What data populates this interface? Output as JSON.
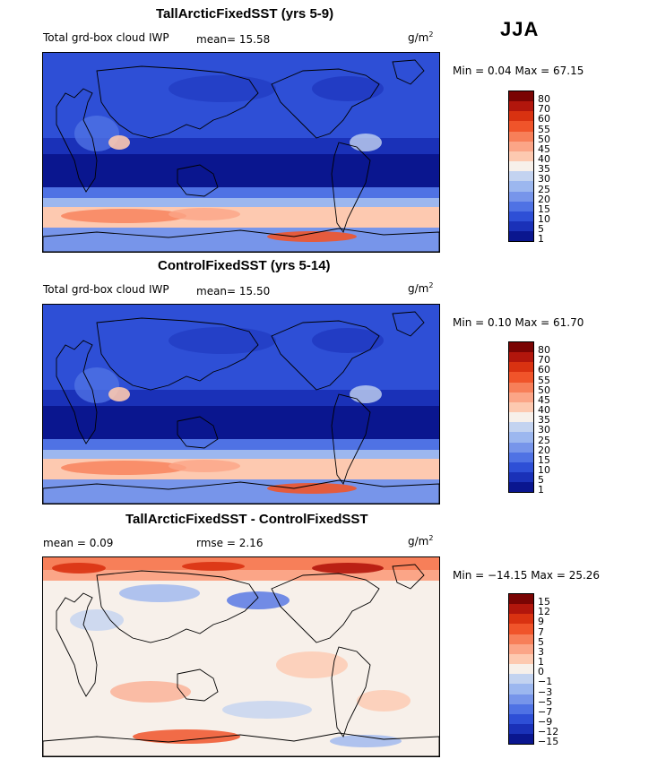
{
  "season": "JJA",
  "units_base": "g/m",
  "units_exp": "2",
  "panels": [
    {
      "title": "TallArcticFixedSST (yrs 5-9)",
      "subtitle": "Total grd-box cloud IWP",
      "mean_text": "mean=  15.58",
      "minmax_text": "Min =   0.04 Max =  67.15"
    },
    {
      "title": "ControlFixedSST (yrs 5-14)",
      "subtitle": "Total grd-box cloud IWP",
      "mean_text": "mean=  15.50",
      "minmax_text": "Min =   0.10 Max =  61.70"
    },
    {
      "title": "TallArcticFixedSST - ControlFixedSST",
      "mean_text": "mean =    0.09",
      "rmse_text": "rmse =    2.16",
      "minmax_text": "Min = −14.15 Max =  25.26"
    }
  ],
  "chart_data": [
    {
      "type": "heatmap",
      "title": "TallArcticFixedSST (yrs 5-9)",
      "variable": "Total grd-box cloud IWP",
      "units": "g/m2",
      "mean": 15.58,
      "min": 0.04,
      "max": 67.15,
      "levels": [
        "80",
        "70",
        "60",
        "55",
        "50",
        "45",
        "40",
        "35",
        "30",
        "25",
        "20",
        "15",
        "10",
        "5",
        "1"
      ],
      "colors": [
        "#7a0403",
        "#b2160c",
        "#d93211",
        "#f0542a",
        "#f77f59",
        "#fba587",
        "#fdc9b0",
        "#f7f0ea",
        "#c3d3f0",
        "#9cb7ef",
        "#7795ea",
        "#4f72e4",
        "#2e4fd6",
        "#1a31b8",
        "#0a168f"
      ]
    },
    {
      "type": "heatmap",
      "title": "ControlFixedSST (yrs 5-14)",
      "variable": "Total grd-box cloud IWP",
      "units": "g/m2",
      "mean": 15.5,
      "min": 0.1,
      "max": 61.7,
      "levels": [
        "80",
        "70",
        "60",
        "55",
        "50",
        "45",
        "40",
        "35",
        "30",
        "25",
        "20",
        "15",
        "10",
        "5",
        "1"
      ],
      "colors": [
        "#7a0403",
        "#b2160c",
        "#d93211",
        "#f0542a",
        "#f77f59",
        "#fba587",
        "#fdc9b0",
        "#f7f0ea",
        "#c3d3f0",
        "#9cb7ef",
        "#7795ea",
        "#4f72e4",
        "#2e4fd6",
        "#1a31b8",
        "#0a168f"
      ]
    },
    {
      "type": "heatmap",
      "title": "TallArcticFixedSST - ControlFixedSST",
      "units": "g/m2",
      "mean": 0.09,
      "rmse": 2.16,
      "min": -14.15,
      "max": 25.26,
      "levels": [
        "15",
        "12",
        "9",
        "7",
        "5",
        "3",
        "1",
        "0",
        "−1",
        "−3",
        "−5",
        "−7",
        "−9",
        "−12",
        "−15"
      ],
      "colors": [
        "#7a0403",
        "#b2160c",
        "#d93211",
        "#f0542a",
        "#f77f59",
        "#fba587",
        "#fdc9b0",
        "#f7f0ea",
        "#c3d3f0",
        "#9cb7ef",
        "#7795ea",
        "#4f72e4",
        "#2e4fd6",
        "#1a31b8",
        "#0a168f"
      ]
    }
  ]
}
